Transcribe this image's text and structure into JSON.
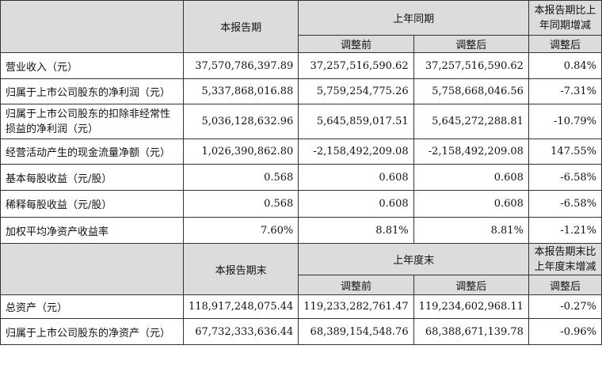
{
  "header1": {
    "current_period": "本报告期",
    "prior_year_same_period": "上年同期",
    "change_ratio": "本报告期比上年同期增减",
    "before_adjustment": "调整前",
    "after_adjustment": "调整后",
    "change_after": "调整后"
  },
  "rows1": [
    {
      "label": "营业收入（元）",
      "current": "37,570,786,397.89",
      "before": "37,257,516,590.62",
      "after": "37,257,516,590.62",
      "change": "0.84%"
    },
    {
      "label": "归属于上市公司股东的净利润（元）",
      "current": "5,337,868,016.88",
      "before": "5,759,254,775.26",
      "after": "5,758,668,046.56",
      "change": "-7.31%"
    },
    {
      "label": "归属于上市公司股东的扣除非经常性损益的净利润（元）",
      "current": "5,036,128,632.96",
      "before": "5,645,859,017.51",
      "after": "5,645,272,288.81",
      "change": "-10.79%"
    },
    {
      "label": "经营活动产生的现金流量净额（元）",
      "current": "1,026,390,862.80",
      "before": "-2,158,492,209.08",
      "after": "-2,158,492,209.08",
      "change": "147.55%"
    },
    {
      "label": "基本每股收益（元/股）",
      "current": "0.568",
      "before": "0.608",
      "after": "0.608",
      "change": "-6.58%"
    },
    {
      "label": "稀释每股收益（元/股）",
      "current": "0.568",
      "before": "0.608",
      "after": "0.608",
      "change": "-6.58%"
    },
    {
      "label": "加权平均净资产收益率",
      "current": "7.60%",
      "before": "8.81%",
      "after": "8.81%",
      "change": "-1.21%"
    }
  ],
  "header2": {
    "current_period_end": "本报告期末",
    "prior_year_end": "上年度末",
    "change_ratio": "本报告期末比上年度末增减",
    "before_adjustment": "调整前",
    "after_adjustment": "调整后",
    "change_after": "调整后"
  },
  "rows2": [
    {
      "label": "总资产（元）",
      "current": "118,917,248,075.44",
      "before": "119,233,282,761.47",
      "after": "119,234,602,968.11",
      "change": "-0.27%"
    },
    {
      "label": "归属于上市公司股东的净资产（元）",
      "current": "67,732,333,636.44",
      "before": "68,389,154,548.76",
      "after": "68,388,671,139.78",
      "change": "-0.96%"
    }
  ]
}
